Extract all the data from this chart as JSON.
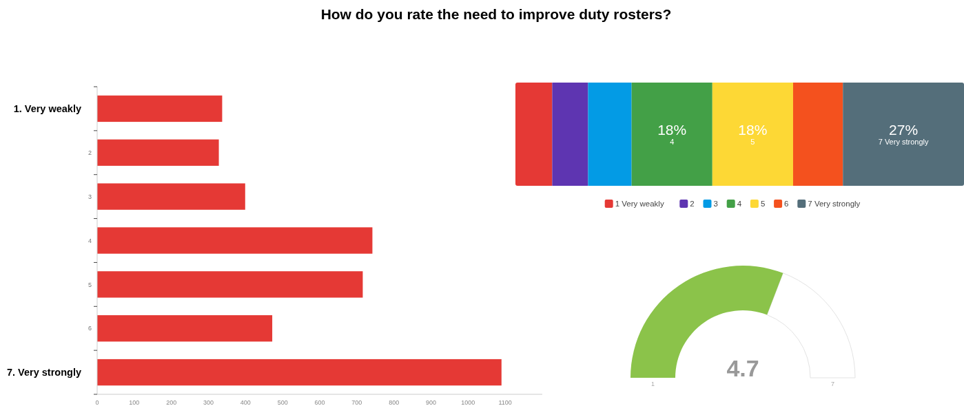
{
  "chart_data": [
    {
      "type": "bar",
      "orientation": "horizontal",
      "title": "How do you rate the need to improve duty rosters?",
      "categories": [
        "1. Very weakly",
        "2",
        "3",
        "4",
        "5",
        "6",
        "7. Very strongly"
      ],
      "values": [
        337,
        328,
        399,
        742,
        716,
        472,
        1090
      ],
      "color": "#e53935",
      "xlim": [
        0,
        1200
      ],
      "xticks": [
        0,
        100,
        200,
        300,
        400,
        500,
        600,
        700,
        800,
        900,
        1000,
        1100
      ]
    },
    {
      "type": "bar",
      "orientation": "horizontal",
      "stacked": true,
      "categories": [
        null
      ],
      "xlim": [
        0,
        100
      ],
      "tick_labels": false,
      "legend": "bottom",
      "series": [
        {
          "name": "1 Very weakly",
          "color": "#e53935",
          "values": [
            8.2
          ]
        },
        {
          "name": "2",
          "color": "#5e35b1",
          "values": [
            8
          ]
        },
        {
          "name": "3",
          "color": "#039be5",
          "values": [
            9.7
          ]
        },
        {
          "name": "4",
          "color": "#43a047",
          "values": [
            18
          ],
          "value_labels": [
            "18%"
          ]
        },
        {
          "name": "5",
          "color": "#fdd835",
          "values": [
            18
          ],
          "value_labels": [
            "18%"
          ]
        },
        {
          "name": "6",
          "color": "#f4511e",
          "values": [
            11.1
          ]
        },
        {
          "name": "7 Very strongly",
          "color": "#546e7a",
          "values": [
            27
          ],
          "value_labels": [
            "27%"
          ]
        }
      ]
    },
    {
      "type": "other",
      "values": [
        4.7
      ],
      "data_labels": true,
      "annotations": [
        "1",
        "7"
      ],
      "color": "#8bc34a"
    }
  ]
}
